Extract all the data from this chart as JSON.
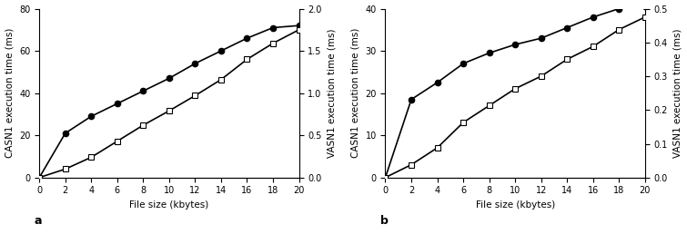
{
  "x": [
    0,
    2,
    4,
    6,
    8,
    10,
    12,
    14,
    16,
    18,
    20
  ],
  "panel_a": {
    "casn1": [
      0,
      21,
      29,
      35,
      41,
      47,
      54,
      60,
      66,
      71,
      72
    ],
    "vasn1_ms": [
      0,
      0.1,
      0.24,
      0.43,
      0.62,
      0.79,
      0.97,
      1.16,
      1.4,
      1.59,
      1.75
    ],
    "casn1_ylim": [
      0,
      80
    ],
    "vasn1_ylim": [
      0,
      2
    ],
    "casn1_yticks": [
      0,
      20,
      40,
      60,
      80
    ],
    "vasn1_yticks": [
      0.0,
      0.5,
      1.0,
      1.5,
      2.0
    ],
    "label": "a"
  },
  "panel_b": {
    "casn1": [
      0,
      18.5,
      22.5,
      27,
      29.5,
      31.5,
      33,
      35.5,
      38,
      40,
      40.5
    ],
    "vasn1_ms": [
      0,
      0.038,
      0.088,
      0.163,
      0.213,
      0.263,
      0.3,
      0.35,
      0.388,
      0.438,
      0.475
    ],
    "casn1_ylim": [
      0,
      40
    ],
    "vasn1_ylim": [
      0,
      0.5
    ],
    "casn1_yticks": [
      0,
      10,
      20,
      30,
      40
    ],
    "vasn1_yticks": [
      0.0,
      0.1,
      0.2,
      0.3,
      0.4,
      0.5
    ],
    "label": "b"
  },
  "xlim": [
    0,
    20
  ],
  "xticks": [
    0,
    2,
    4,
    6,
    8,
    10,
    12,
    14,
    16,
    18,
    20
  ],
  "xlabel": "File size (kbytes)",
  "ylabel_left": "CASN1 execution time (ms)",
  "ylabel_right": "VASN1 execution time (ms)",
  "line_color": "#000000",
  "bg_color": "#ffffff",
  "fontsize_label": 7.5,
  "fontsize_tick": 7,
  "fontsize_panel": 9
}
